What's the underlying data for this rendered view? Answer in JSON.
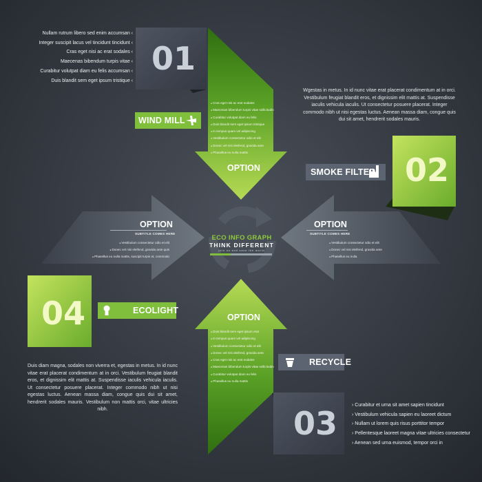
{
  "colors": {
    "green_light": "#b3d84a",
    "green_dark": "#3f8a18",
    "slate": "#5a626c",
    "navy": "#3a3f4a",
    "background": "#2f343b"
  },
  "center": {
    "title": "ECO INFO GRAPH",
    "slogan": "THINK DIFFERENT",
    "tagline": "join us and save the world",
    "icon": "recycle-arrows-icon"
  },
  "step1": {
    "number": "01",
    "tag": "WIND MILL",
    "tag_icon": "plane-icon",
    "bullets": [
      "Nullam rutrum libero sed enim accumsan",
      "Integer suscipit lacus vel tincidunt tincidunt",
      "Cras eget nisi ac erat sodales",
      "Maecenas bibendum turpis vitae",
      "Curabitur volutpat diam eu felis accumsan",
      "Duis blandit sem eget ipsum tristique"
    ],
    "arrow_label": "OPTION",
    "arrow_bullets": [
      "Cras eget nisi ac erat sodales",
      "Maecenas bibendum turpis vitae sollicitudin",
      "Curabitur volutpat diam eu felis",
      "Duis blandit sem eget ipsum tristique",
      "In tempus quam vel adipiscing",
      "Vestibulum consectetur odio et elit",
      "Donec vel nisi eleifend, gravida ante",
      "Phasellus eu nulla mattis"
    ]
  },
  "step2": {
    "number": "02",
    "tag": "SMOKE FILTER",
    "tag_icon": "factory-icon",
    "paragraph": "Wgestas in metus. In id nunc vitae erat placerat condimentum at in orci. Vestibulum feugiat blandit eros, et dignissim elit mattis at. Suspendisse iaculis vehicula iaculis. Ut consectetur posuere placerat. Integer commodo nibh ut nisi egestas luctus. Aenean massa diam, congue quis dui sit amet, hendrerit sodales mauris.",
    "arrow_label": "OPTION",
    "arrow_subtitle": "SUBTITLE COMES HERE",
    "arrow_bullets": [
      "Vestibulum consectetur odio et elit",
      "Donec vel nisi eleifend, gravida ante",
      "Phasellus eu nulla"
    ]
  },
  "step3": {
    "number": "03",
    "tag": "RECYCLE",
    "tag_icon": "recycle-bin-icon",
    "bullets": [
      "Curabitur et urna sit amet sapien tincidunt",
      "Vestibulum vehicula sapien eu laoreet dictum",
      "Nullam ut lorem quis risus porttitor tempor",
      "Pellentesque laoreet magna vitae ultricies consectetur",
      "Aenean sed urna euismod, tempor orci in"
    ],
    "arrow_label": "OPTION",
    "arrow_bullets": [
      "Duis blandit sem eget ipsum erat",
      "In tempus quam vel adipiscing",
      "Vestibulum consectetur odio et elit",
      "Donec vel nisi eleifend, gravida ante",
      "Cras eget nisi ac erat sodales",
      "Maecenas bibendum turpis vitae sollicitudin",
      "Curabitur volutpat diam eu felis",
      "Phasellus eu nulla mattis"
    ]
  },
  "step4": {
    "number": "04",
    "tag": "ECOLIGHT",
    "tag_icon": "light-bulb-icon",
    "paragraph": "Duis diam magna, sodales non viverra et, egestas in metus. In id nunc vitae erat placerat condimentum at in orci. Vestibulum feugiat blandit eros, et dignissim elit mattis at. Suspendisse iaculis vehicula iaculis. Ut consectetur posuere placerat. Integer commodo nibh ut nisi egestas luctus. Aenean massa diam, congue quis dui sit amet, hendrerit sodales mauris. Vestibulum non mattis orci, vitae ultricies nibh.",
    "arrow_label": "OPTION",
    "arrow_subtitle": "SUBTITLE COMES HERE",
    "arrow_bullets": [
      "Vestibulum consectetur odio et elit",
      "Donec vel nisi eleifend, gravida ante quis",
      "Phasellus eu nulla mattis, suscipit turpis et, commodo"
    ]
  }
}
